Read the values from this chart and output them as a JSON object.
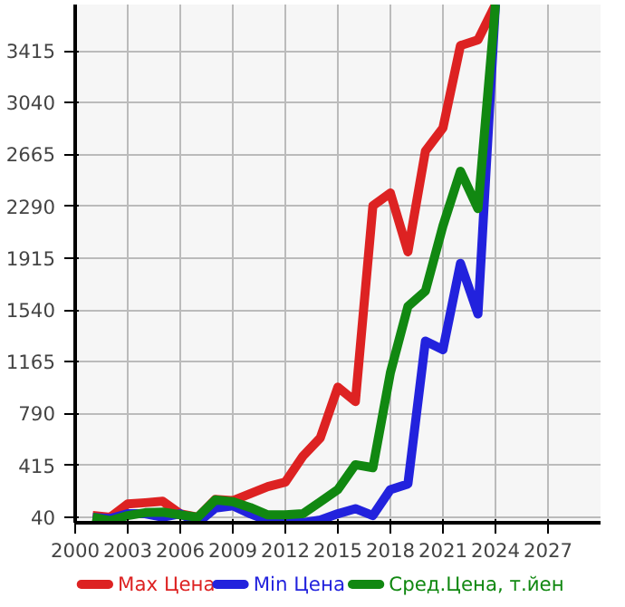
{
  "chart_data": {
    "type": "line",
    "x": [
      2001,
      2002,
      2003,
      2004,
      2005,
      2006,
      2007,
      2008,
      2009,
      2010,
      2011,
      2012,
      2013,
      2014,
      2015,
      2016,
      2017,
      2018,
      2019,
      2020,
      2021,
      2022,
      2023,
      2024
    ],
    "series": [
      {
        "name": "Max Цена",
        "color": "#dd2222",
        "values": [
          52,
          40,
          136,
          145,
          155,
          65,
          40,
          169,
          160,
          211,
          261,
          294,
          481,
          615,
          981,
          877,
          2294,
          2386,
          1961,
          2690,
          2857,
          3453,
          3494,
          3750
        ]
      },
      {
        "name": "Min Цена",
        "color": "#2222dd",
        "values": [
          40,
          30,
          65,
          65,
          40,
          65,
          0,
          106,
          123,
          65,
          15,
          0,
          0,
          20,
          65,
          102,
          52,
          240,
          281,
          1315,
          1252,
          1877,
          1511,
          3750
        ]
      },
      {
        "name": "Сред.Цена, т.йен",
        "color": "#118811",
        "values": [
          40,
          15,
          52,
          73,
          77,
          57,
          40,
          165,
          152,
          110,
          57,
          57,
          65,
          152,
          240,
          420,
          398,
          1086,
          1565,
          1677,
          2148,
          2544,
          2273,
          3750
        ]
      }
    ],
    "xlim": [
      2000,
      2030
    ],
    "ylim": [
      0,
      3750
    ],
    "xticks": [
      2000,
      2003,
      2006,
      2009,
      2012,
      2015,
      2018,
      2021,
      2024,
      2027
    ],
    "yticks": [
      40,
      415,
      790,
      1165,
      1540,
      1915,
      2290,
      2665,
      3040,
      3415
    ],
    "grid": true,
    "legend": "bottom",
    "marker": "none",
    "line_style": "solid"
  }
}
